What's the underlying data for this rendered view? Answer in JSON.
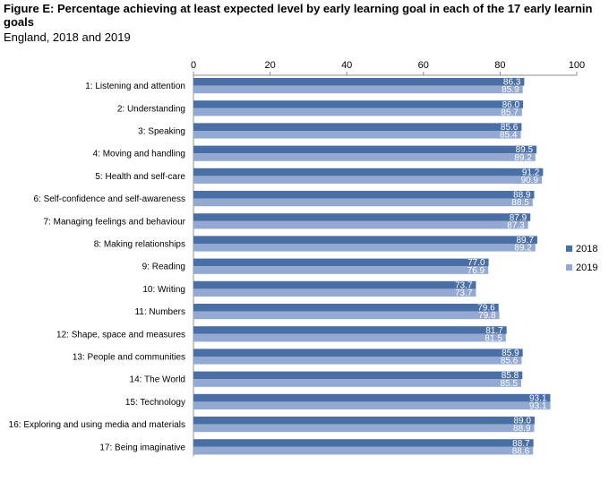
{
  "chart_data": {
    "type": "bar",
    "orientation": "horizontal",
    "title": "Figure E: Percentage achieving at least expected level by early learning goal in each of the 17 early learnin goals",
    "subtitle": "England, 2018 and 2019",
    "xlim": [
      0,
      100
    ],
    "x_ticks": [
      "0",
      "20",
      "40",
      "60",
      "80",
      "100"
    ],
    "grid": false,
    "legend_position": "right",
    "categories": [
      "1: Listening and attention",
      "2: Understanding",
      "3: Speaking",
      "4: Moving and handling",
      "5: Health and self-care",
      "6: Self-confidence and self-awareness",
      "7: Managing feelings and behaviour",
      "8: Making relationships",
      "9: Reading",
      "10: Writing",
      "11: Numbers",
      "12: Shape, space and measures",
      "13: People and communities",
      "14: The World",
      "15: Technology",
      "16: Exploring and using media and materials",
      "17: Being imaginative"
    ],
    "series": [
      {
        "name": "2018",
        "color": "#4a6fa5",
        "values": [
          86.3,
          86.0,
          85.6,
          89.5,
          91.2,
          88.9,
          87.9,
          89.7,
          77.0,
          73.7,
          79.6,
          81.7,
          85.9,
          85.8,
          93.1,
          89.0,
          88.7
        ],
        "labels": [
          "86.3",
          "86.0",
          "85.6",
          "89.5",
          "91.2",
          "88.9",
          "87.9",
          "89.7",
          "77.0",
          "73.7",
          "79.6",
          "81.7",
          "85.9",
          "85.8",
          "93.1",
          "89.0",
          "88.7"
        ]
      },
      {
        "name": "2019",
        "color": "#93a9d2",
        "values": [
          85.9,
          85.7,
          85.4,
          89.2,
          90.9,
          88.5,
          87.3,
          89.2,
          76.9,
          73.7,
          79.8,
          81.5,
          85.6,
          85.5,
          93.1,
          88.9,
          88.6
        ],
        "labels": [
          "85.9",
          "85.7",
          "85.4",
          "89.2",
          "90.9",
          "88.5",
          "87.3",
          "89.2",
          "76.9",
          "73.7",
          "79.8",
          "81.5",
          "85.6",
          "85.5",
          "93.1",
          "88.9",
          "88.6"
        ]
      }
    ]
  }
}
